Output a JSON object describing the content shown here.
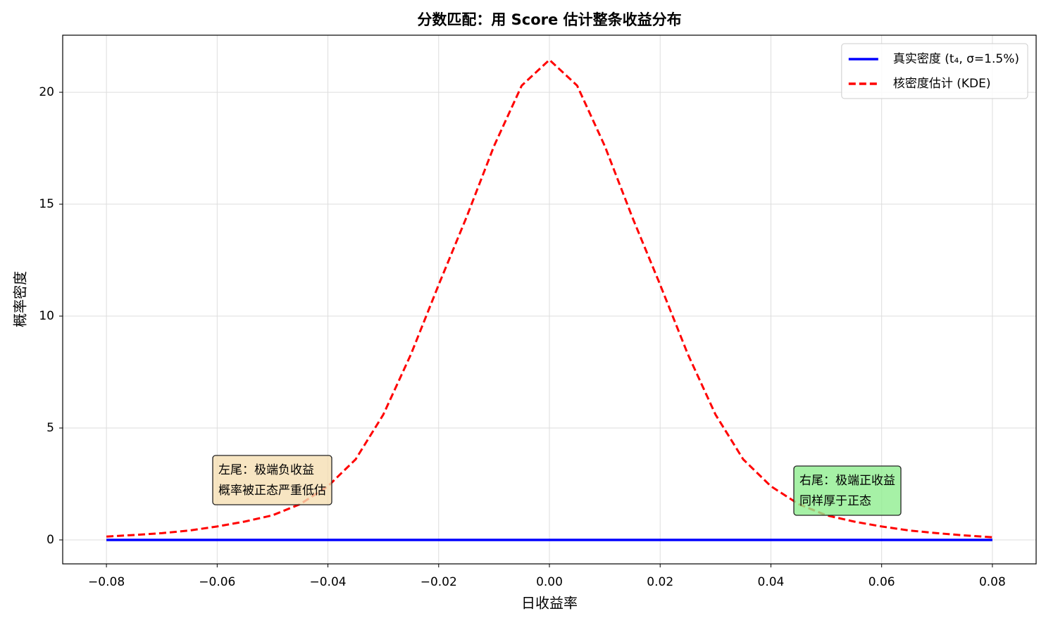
{
  "chart_data": {
    "type": "line",
    "title": "分数匹配：用 Score 估计整条收益分布",
    "xlabel": "日收益率",
    "ylabel": "概率密度",
    "x": [
      -0.08,
      -0.075,
      -0.07,
      -0.065,
      -0.06,
      -0.055,
      -0.05,
      -0.045,
      -0.04,
      -0.035,
      -0.03,
      -0.025,
      -0.02,
      -0.015,
      -0.01,
      -0.005,
      0,
      0.005,
      0.01,
      0.015,
      0.02,
      0.025,
      0.03,
      0.035,
      0.04,
      0.045,
      0.05,
      0.055,
      0.06,
      0.065,
      0.07,
      0.075,
      0.08
    ],
    "series": [
      {
        "name": "真实密度 (t₄, σ=1.5%)",
        "color": "#0000ff",
        "style": "solid",
        "values": [
          0,
          0,
          0,
          0,
          0,
          0,
          0,
          0,
          0,
          0,
          0,
          0,
          0,
          0,
          0,
          0,
          0,
          0,
          0,
          0,
          0,
          0,
          0,
          0,
          0,
          0,
          0,
          0,
          0,
          0,
          0,
          0,
          0
        ]
      },
      {
        "name": "核密度估计 (KDE)",
        "color": "#ff0000",
        "style": "dashed",
        "values": [
          0.15,
          0.22,
          0.3,
          0.42,
          0.6,
          0.82,
          1.1,
          1.6,
          2.4,
          3.6,
          5.6,
          8.3,
          11.4,
          14.4,
          17.6,
          20.3,
          21.45,
          20.3,
          17.6,
          14.4,
          11.4,
          8.3,
          5.6,
          3.6,
          2.4,
          1.6,
          1.1,
          0.82,
          0.6,
          0.42,
          0.3,
          0.2,
          0.12
        ]
      }
    ],
    "xlim": [
      -0.0879,
      0.0879
    ],
    "ylim": [
      -1.07,
      22.55
    ],
    "xticks": [
      {
        "value": -0.08,
        "label": "−0.08"
      },
      {
        "value": -0.06,
        "label": "−0.06"
      },
      {
        "value": -0.04,
        "label": "−0.04"
      },
      {
        "value": -0.02,
        "label": "−0.02"
      },
      {
        "value": 0,
        "label": "0.00"
      },
      {
        "value": 0.02,
        "label": "0.02"
      },
      {
        "value": 0.04,
        "label": "0.04"
      },
      {
        "value": 0.06,
        "label": "0.06"
      },
      {
        "value": 0.08,
        "label": "0.08"
      }
    ],
    "yticks": [
      0,
      5,
      10,
      15,
      20
    ],
    "grid": true,
    "legend": "upper right",
    "annotations": [
      {
        "lines": [
          "左尾：极端负收益",
          "概率被正态严重低估"
        ],
        "color": "#f5deb3"
      },
      {
        "lines": [
          "右尾：极端正收益",
          "同样厚于正态"
        ],
        "color": "#90ee90"
      }
    ]
  }
}
